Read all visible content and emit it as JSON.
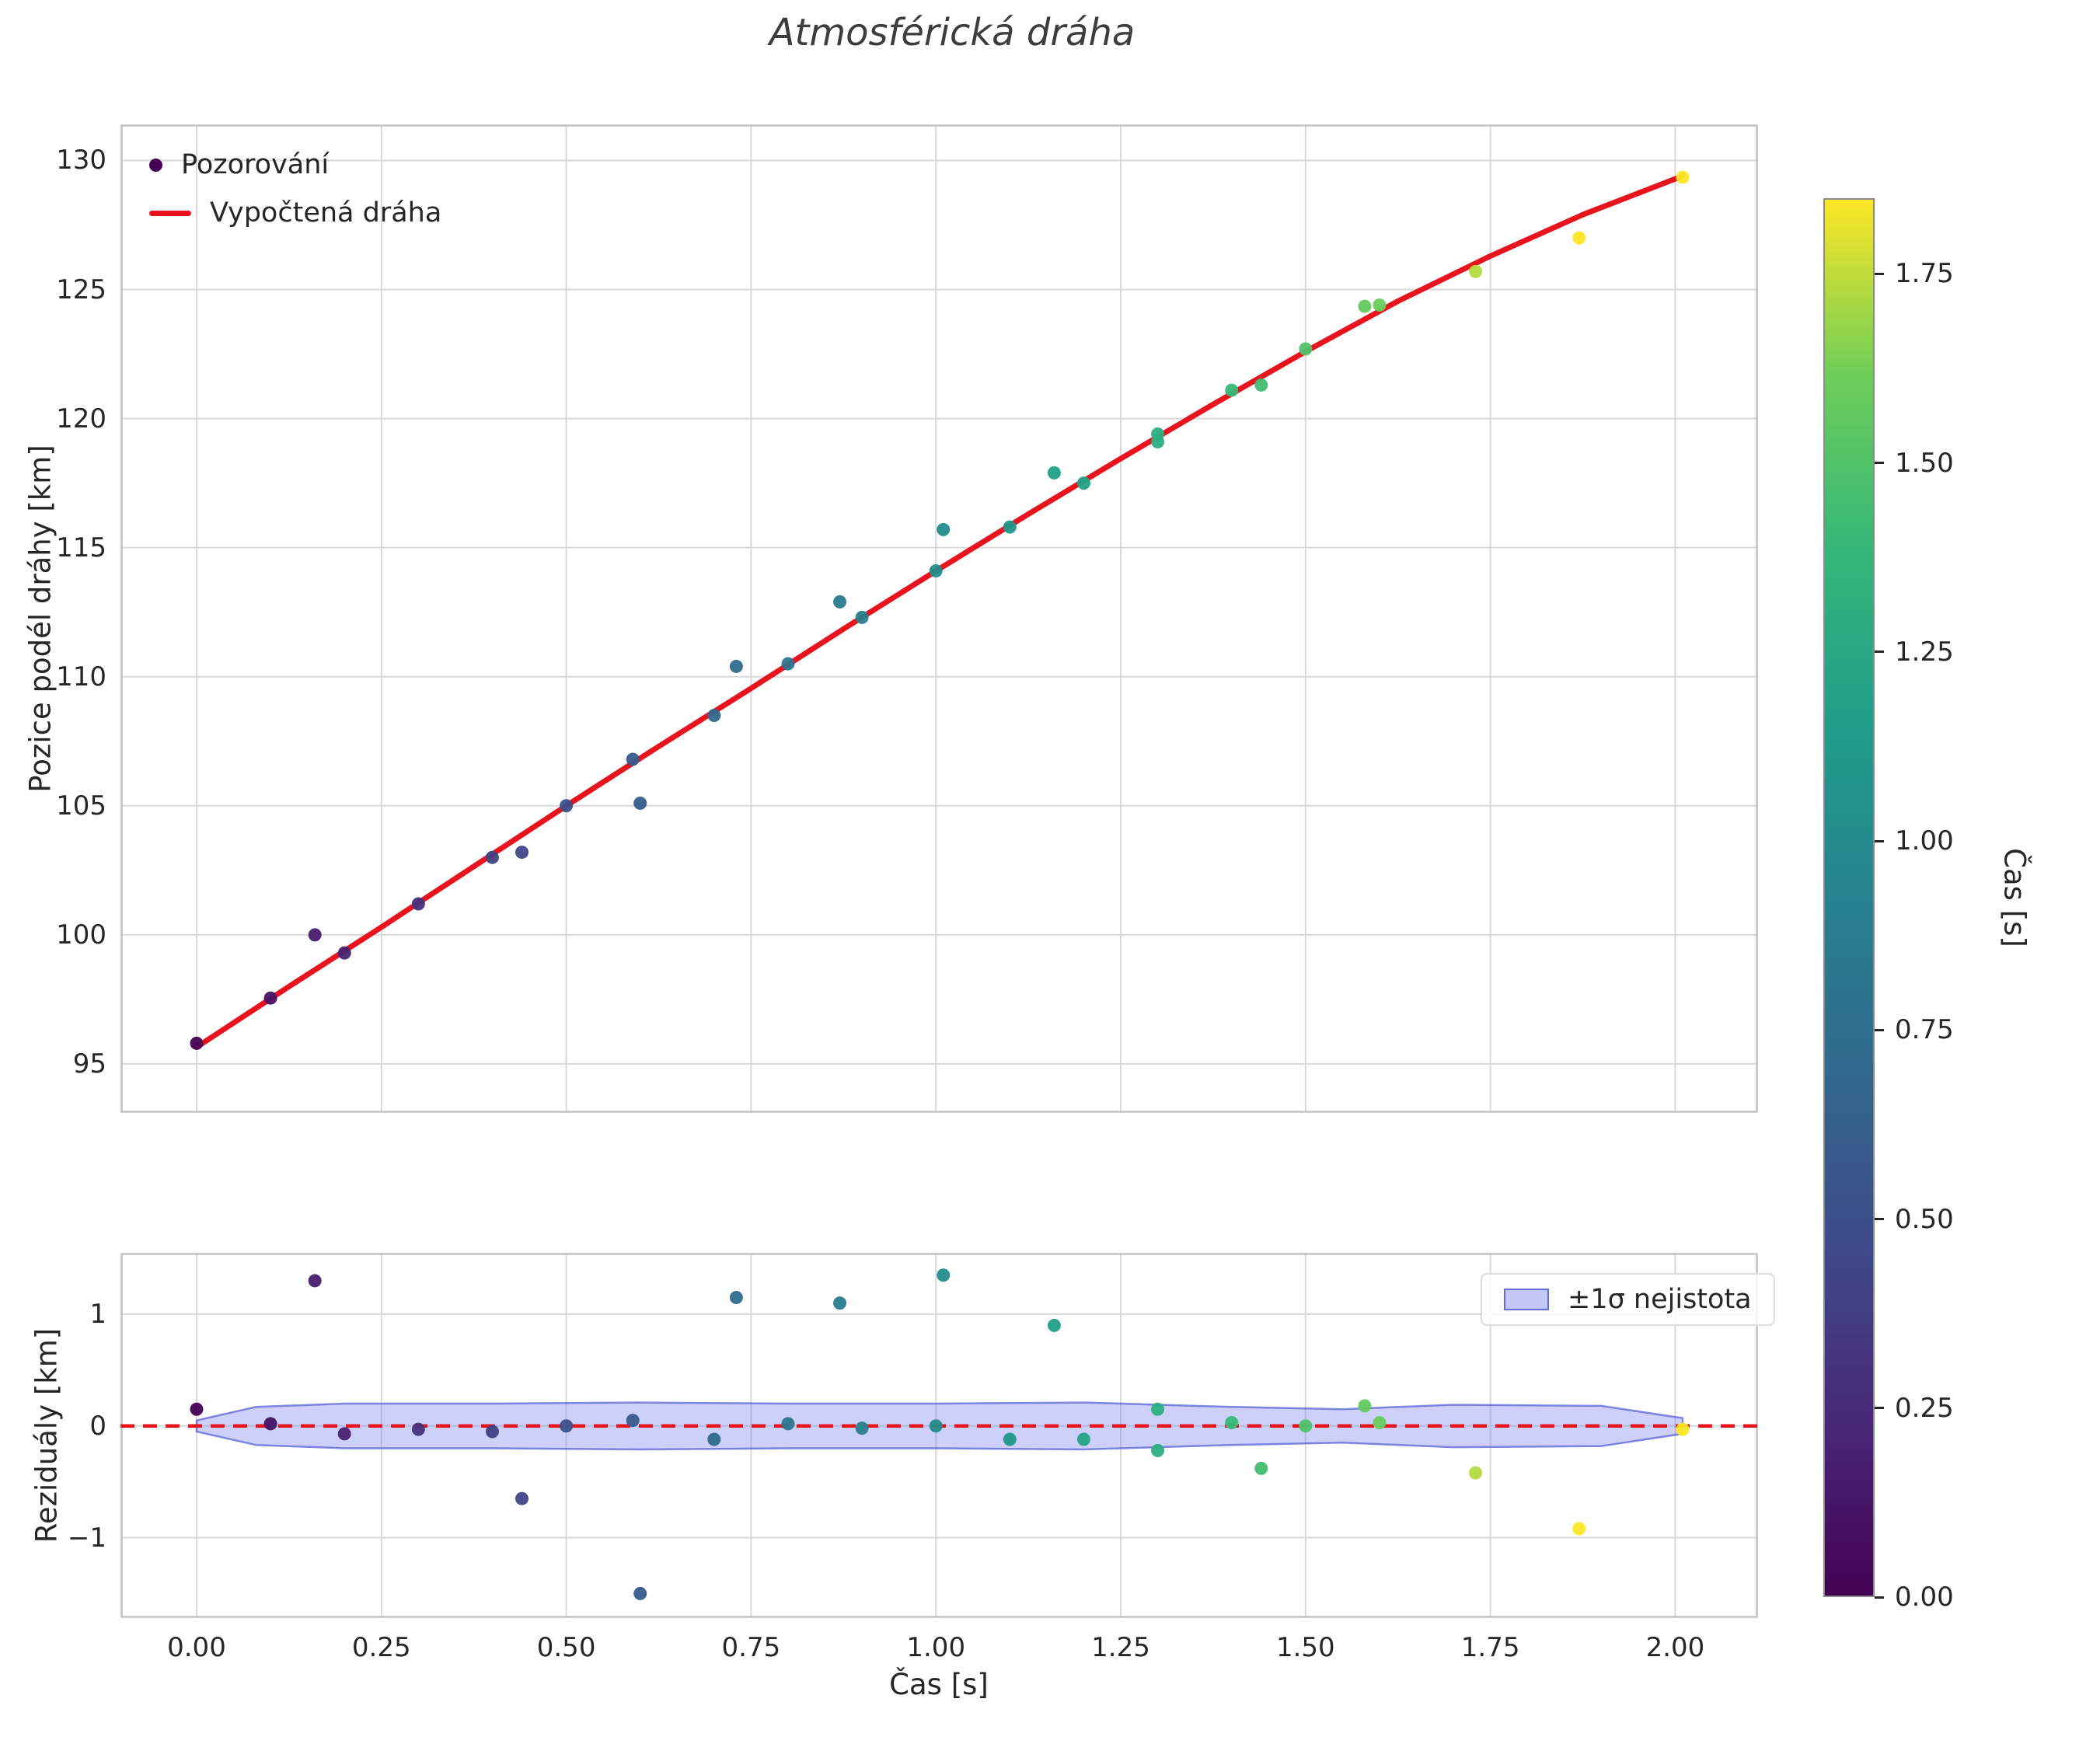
{
  "title": "Atmosférická dráha",
  "colors": {
    "curve_red": "#e9131d",
    "zero_line": "#e9131d",
    "marker_first": "#440154",
    "band_fill": "#7b83ec",
    "band_edge": "#5a63d8",
    "grid": "#d9d9d9",
    "spine": "#c2c2c2",
    "text": "#262626",
    "title": "#3d3d3d"
  },
  "chart_data": [
    {
      "type": "scatter",
      "title": "Atmosférická dráha",
      "ylabel": "Pozice podél dráhy [km]",
      "xlabel": "Čas [s]",
      "xlim": [
        -0.103,
        2.112
      ],
      "ylim": [
        93.1,
        131.4
      ],
      "grid": true,
      "legend": [
        "Pozorování",
        "Vypočtená dráha"
      ],
      "legend_position": "upper left",
      "xtick_values": [
        0,
        0.25,
        0.5,
        0.75,
        1.0,
        1.25,
        1.5,
        1.75,
        2.0
      ],
      "yticks": [
        {
          "v": 95,
          "label": "95"
        },
        {
          "v": 100,
          "label": "100"
        },
        {
          "v": 105,
          "label": "105"
        },
        {
          "v": 110,
          "label": "110"
        },
        {
          "v": 115,
          "label": "115"
        },
        {
          "v": 120,
          "label": "120"
        },
        {
          "v": 125,
          "label": "125"
        },
        {
          "v": 130,
          "label": "130"
        }
      ],
      "points": {
        "color_by": "t",
        "t": [
          0.0,
          0.1,
          0.16,
          0.2,
          0.3,
          0.4,
          0.44,
          0.5,
          0.59,
          0.6,
          0.7,
          0.73,
          0.8,
          0.87,
          0.9,
          1.0,
          1.01,
          1.1,
          1.16,
          1.2,
          1.3,
          1.3,
          1.4,
          1.44,
          1.5,
          1.58,
          1.6,
          1.73,
          1.87,
          2.01
        ],
        "y": [
          95.8,
          97.55,
          100.0,
          99.3,
          101.2,
          103.0,
          103.2,
          105.0,
          106.8,
          105.1,
          108.5,
          110.4,
          110.5,
          112.9,
          112.3,
          114.1,
          115.7,
          115.8,
          117.9,
          117.5,
          119.4,
          119.1,
          121.1,
          121.3,
          122.7,
          124.35,
          124.4,
          125.7,
          127.0,
          129.35
        ]
      },
      "curve": {
        "label": "Vypočtená dráha",
        "t": [
          0.0,
          0.125,
          0.25,
          0.375,
          0.5,
          0.625,
          0.75,
          0.875,
          1.0,
          1.125,
          1.25,
          1.375,
          1.5,
          1.625,
          1.75,
          1.875,
          2.01
        ],
        "y": [
          95.65,
          98.0,
          100.3,
          102.65,
          105.0,
          107.3,
          109.55,
          111.85,
          114.1,
          116.3,
          118.45,
          120.55,
          122.6,
          124.55,
          126.3,
          127.9,
          129.4
        ]
      }
    },
    {
      "type": "scatter",
      "ylabel": "Reziduály [km]",
      "xlabel": "Čas [s]",
      "xlim": [
        -0.103,
        2.112
      ],
      "ylim": [
        -1.72,
        1.55
      ],
      "grid": true,
      "legend": [
        "±1σ nejistota"
      ],
      "legend_position": "upper right",
      "xticks": [
        {
          "v": 0.0,
          "label": "0.00"
        },
        {
          "v": 0.25,
          "label": "0.25"
        },
        {
          "v": 0.5,
          "label": "0.50"
        },
        {
          "v": 0.75,
          "label": "0.75"
        },
        {
          "v": 1.0,
          "label": "1.00"
        },
        {
          "v": 1.25,
          "label": "1.25"
        },
        {
          "v": 1.5,
          "label": "1.50"
        },
        {
          "v": 1.75,
          "label": "1.75"
        },
        {
          "v": 2.0,
          "label": "2.00"
        }
      ],
      "yticks": [
        {
          "v": -1,
          "label": "−1"
        },
        {
          "v": 0,
          "label": "0"
        },
        {
          "v": 1,
          "label": "1"
        }
      ],
      "zero_line_y": 0,
      "points": {
        "color_by": "t",
        "t": [
          0.0,
          0.1,
          0.16,
          0.2,
          0.3,
          0.4,
          0.44,
          0.5,
          0.59,
          0.6,
          0.7,
          0.73,
          0.8,
          0.87,
          0.9,
          1.0,
          1.01,
          1.1,
          1.16,
          1.2,
          1.3,
          1.3,
          1.4,
          1.44,
          1.5,
          1.58,
          1.6,
          1.73,
          1.87,
          2.01
        ],
        "residual": [
          0.15,
          0.02,
          1.3,
          -0.07,
          -0.03,
          -0.05,
          -0.65,
          0.0,
          0.05,
          -1.5,
          -0.12,
          1.15,
          0.02,
          1.1,
          -0.02,
          0.0,
          1.35,
          -0.12,
          0.9,
          -0.12,
          0.15,
          -0.22,
          0.03,
          -0.38,
          0.0,
          0.18,
          0.03,
          -0.42,
          -0.92,
          -0.03
        ]
      },
      "band": {
        "label": "±1σ nejistota",
        "t": [
          0.0,
          0.08,
          0.2,
          0.4,
          0.6,
          0.8,
          1.0,
          1.2,
          1.4,
          1.55,
          1.7,
          1.9,
          2.01
        ],
        "upper": [
          0.05,
          0.17,
          0.2,
          0.2,
          0.21,
          0.2,
          0.2,
          0.21,
          0.17,
          0.15,
          0.19,
          0.18,
          0.07
        ],
        "lower": [
          -0.05,
          -0.17,
          -0.2,
          -0.2,
          -0.21,
          -0.2,
          -0.2,
          -0.21,
          -0.17,
          -0.15,
          -0.19,
          -0.18,
          -0.07
        ]
      }
    }
  ],
  "colorbar": {
    "label": "Čas [s]",
    "vmin": 0.0,
    "vmax": 1.85,
    "colormap": "viridis",
    "stops": [
      "#440154",
      "#482878",
      "#3e4a89",
      "#31688e",
      "#26828e",
      "#1f9e89",
      "#35b779",
      "#6ece58",
      "#fde725"
    ],
    "ticks": [
      {
        "v": 0.0,
        "label": "0.00"
      },
      {
        "v": 0.25,
        "label": "0.25"
      },
      {
        "v": 0.5,
        "label": "0.50"
      },
      {
        "v": 0.75,
        "label": "0.75"
      },
      {
        "v": 1.0,
        "label": "1.00"
      },
      {
        "v": 1.25,
        "label": "1.25"
      },
      {
        "v": 1.5,
        "label": "1.50"
      },
      {
        "v": 1.75,
        "label": "1.75"
      }
    ]
  }
}
